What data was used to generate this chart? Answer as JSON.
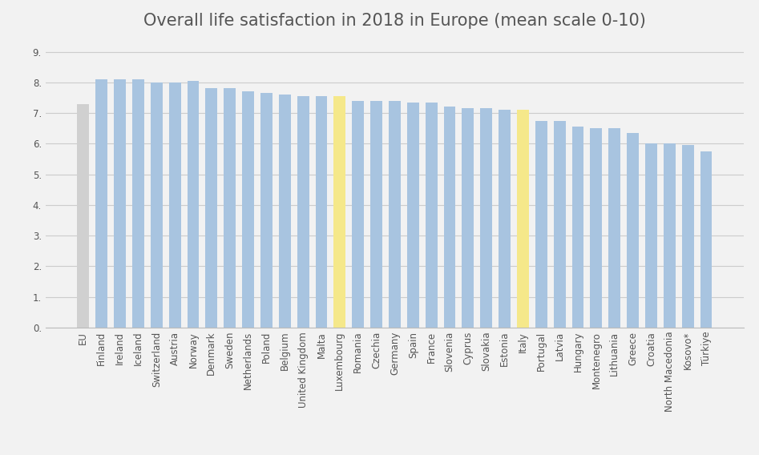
{
  "title": "Overall life satisfaction in 2018 in Europe (mean scale 0-10)",
  "categories": [
    "EU",
    "Finland",
    "Ireland",
    "Iceland",
    "Switzerland",
    "Austria",
    "Norway",
    "Denmark",
    "Sweden",
    "Netherlands",
    "Poland",
    "Belgium",
    "United Kingdom",
    "Malta",
    "Luxembourg",
    "Romania",
    "Czechia",
    "Germany",
    "Spain",
    "France",
    "Slovenia",
    "Cyprus",
    "Slovakia",
    "Estonia",
    "Italy",
    "Portugal",
    "Latvia",
    "Hungary",
    "Montenegro",
    "Lithuania",
    "Greece",
    "Croatia",
    "North Macedonia",
    "Kosovo*",
    "Türkiye"
  ],
  "values": [
    7.3,
    8.1,
    8.1,
    8.1,
    8.0,
    8.0,
    8.05,
    7.8,
    7.8,
    7.7,
    7.65,
    7.6,
    7.55,
    7.55,
    7.55,
    7.4,
    7.4,
    7.4,
    7.35,
    7.35,
    7.2,
    7.15,
    7.15,
    7.1,
    7.1,
    6.75,
    6.75,
    6.55,
    6.5,
    6.5,
    6.35,
    6.0,
    6.0,
    5.95,
    5.75
  ],
  "bar_colors_type": [
    "gray",
    "blue",
    "blue",
    "blue",
    "blue",
    "blue",
    "blue",
    "blue",
    "blue",
    "blue",
    "blue",
    "blue",
    "blue",
    "blue",
    "yellow",
    "blue",
    "blue",
    "blue",
    "blue",
    "blue",
    "blue",
    "blue",
    "blue",
    "blue",
    "yellow",
    "blue",
    "blue",
    "blue",
    "blue",
    "blue",
    "blue",
    "blue",
    "blue",
    "blue",
    "blue"
  ],
  "blue_color": "#a8c4e0",
  "gray_color": "#d0d0d0",
  "yellow_color": "#f5e88a",
  "ylim": [
    0,
    9.5
  ],
  "yticks": [
    0.0,
    1.0,
    2.0,
    3.0,
    4.0,
    5.0,
    6.0,
    7.0,
    8.0,
    9.0
  ],
  "ytick_labels": [
    "0.",
    "1.",
    "2.",
    "3.",
    "4.",
    "5.",
    "6.",
    "7.",
    "8.",
    "9."
  ],
  "background_color": "#f2f2f2",
  "title_fontsize": 15,
  "tick_fontsize": 8.5
}
